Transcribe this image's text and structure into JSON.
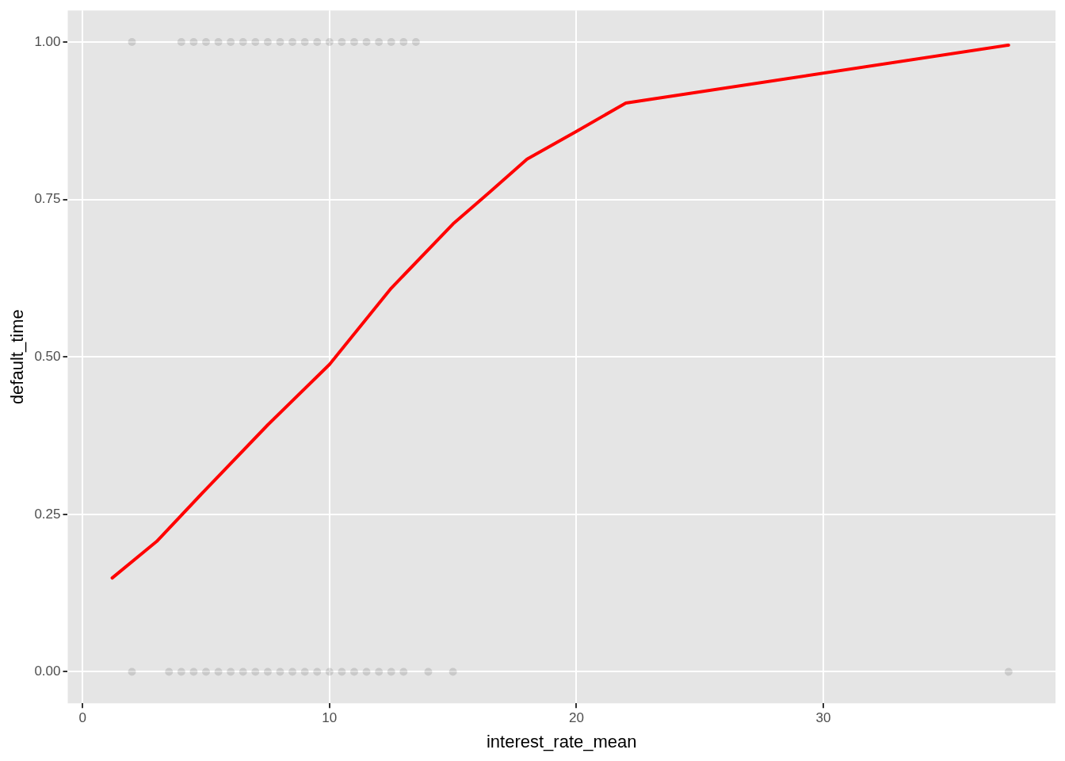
{
  "chart_data": {
    "type": "scatter",
    "xlabel": "interest_rate_mean",
    "ylabel": "default_time",
    "xlim": [
      -0.6,
      39.4
    ],
    "xticks": [
      0,
      10,
      20,
      30
    ],
    "ylim": [
      -0.05,
      1.05
    ],
    "yticks": [
      {
        "value": 0,
        "label": "0.00"
      },
      {
        "value": 0.25,
        "label": "0.25"
      },
      {
        "value": 0.5,
        "label": "0.50"
      },
      {
        "value": 0.75,
        "label": "0.75"
      },
      {
        "value": 1,
        "label": "1.00"
      }
    ],
    "grid": true,
    "legend": false,
    "marker": "circle",
    "series": [
      {
        "color": "#000000",
        "x": [
          2,
          4,
          4.5,
          5,
          5.5,
          6,
          6.5,
          7,
          7.5,
          8,
          8.5,
          9,
          9.5,
          10,
          10.5,
          11,
          11.5,
          12,
          12.5,
          13,
          13.5
        ],
        "values": [
          1,
          1,
          1,
          1,
          1,
          1,
          1,
          1,
          1,
          1,
          1,
          1,
          1,
          1,
          1,
          1,
          1,
          1,
          1,
          1,
          1
        ]
      },
      {
        "color": "#000000",
        "x": [
          2,
          3.5,
          4,
          4.5,
          5,
          5.5,
          6,
          6.5,
          7,
          7.5,
          8,
          8.5,
          9,
          9.5,
          10,
          10.5,
          11,
          11.5,
          12,
          12.5,
          13,
          14,
          15,
          37.5
        ],
        "values": [
          0,
          0,
          0,
          0,
          0,
          0,
          0,
          0,
          0,
          0,
          0,
          0,
          0,
          0,
          0,
          0,
          0,
          0,
          0,
          0,
          0,
          0,
          0,
          0
        ]
      },
      {
        "type": "line",
        "color": "#ff0000",
        "marker": "none",
        "line_style": "solid",
        "x": [
          1.2,
          3,
          5,
          7.5,
          10,
          12.5,
          15,
          16.5,
          18,
          20,
          22,
          37.5
        ],
        "values": [
          0.149,
          0.207,
          0.29,
          0.392,
          0.488,
          0.609,
          0.711,
          0.762,
          0.814,
          0.858,
          0.903,
          0.995
        ]
      }
    ]
  }
}
